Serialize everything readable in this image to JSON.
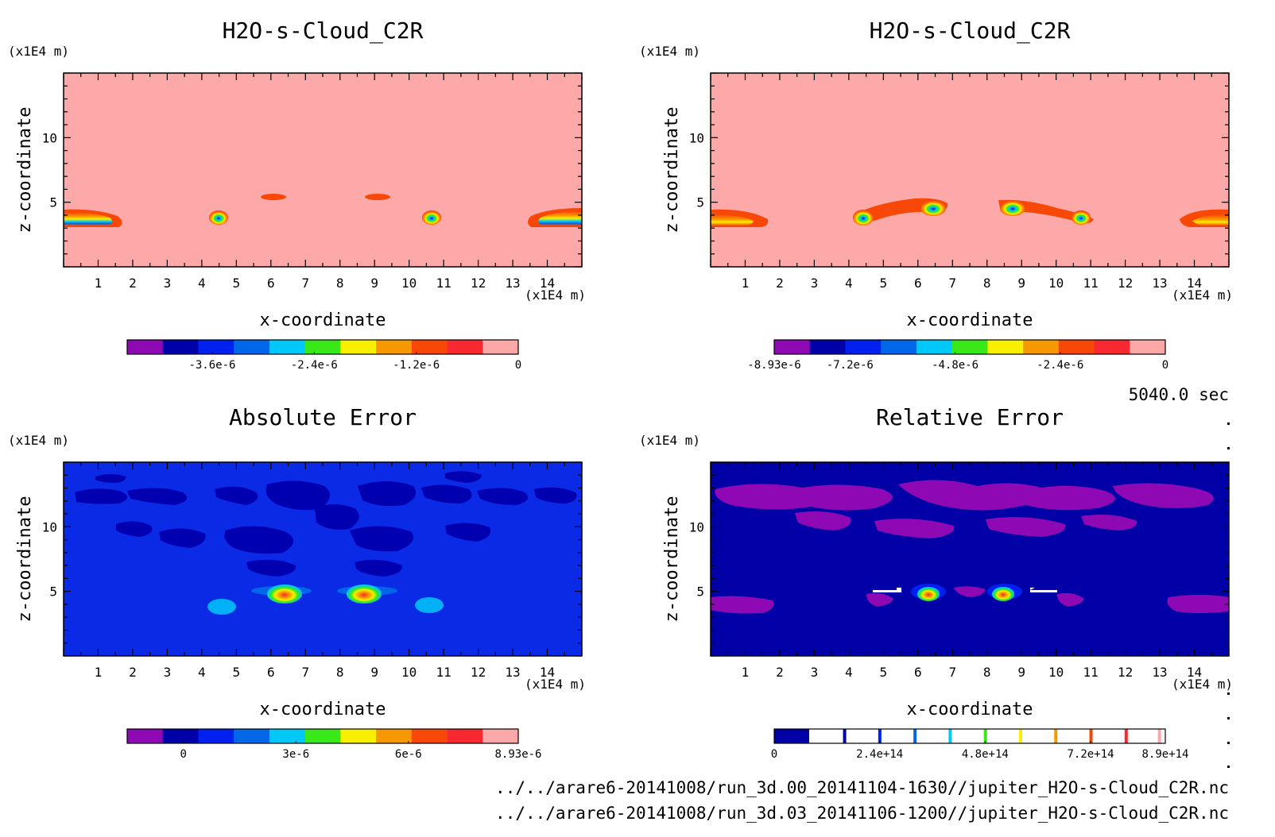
{
  "colors": {
    "palette_neg": [
      "#8e09b3",
      "#0000a8",
      "#0020f0",
      "#0068e8",
      "#00c8f8",
      "#38e818",
      "#f8f000",
      "#f89800",
      "#f84808",
      "#f82830",
      "#fca8a8"
    ],
    "abs_bg": "#0a2ae6",
    "rel_bg": "#0000a6",
    "pink_bg": "#fda9a9",
    "purple": "#8e09b3"
  },
  "chart_data": [
    {
      "type": "heatmap",
      "title": "H2O-s-Cloud_C2R",
      "xlabel": "x-coordinate",
      "ylabel": "z-coordinate",
      "x_unit": "(x1E4 m)",
      "y_unit": "(x1E4 m)",
      "xlim": [
        0,
        15
      ],
      "ylim": [
        0,
        15
      ],
      "x_ticks": [
        1,
        2,
        3,
        4,
        5,
        6,
        7,
        8,
        9,
        10,
        11,
        12,
        13,
        14
      ],
      "y_ticks": [
        5,
        10
      ],
      "colorbar_ticks": [
        "-3.6e-6",
        "-2.4e-6",
        "-1.2e-6",
        "0"
      ],
      "colorbar_range": [
        -4.6e-06,
        0
      ]
    },
    {
      "type": "heatmap",
      "title": "H2O-s-Cloud_C2R",
      "xlabel": "x-coordinate",
      "ylabel": "z-coordinate",
      "x_unit": "(x1E4 m)",
      "y_unit": "(x1E4 m)",
      "xlim": [
        0,
        15
      ],
      "ylim": [
        0,
        15
      ],
      "x_ticks": [
        1,
        2,
        3,
        4,
        5,
        6,
        7,
        8,
        9,
        10,
        11,
        12,
        13,
        14
      ],
      "y_ticks": [
        5,
        10
      ],
      "colorbar_ticks": [
        "-8.93e-6",
        "-7.2e-6",
        "-4.8e-6",
        "-2.4e-6",
        "0"
      ],
      "colorbar_range": [
        -8.93e-06,
        0
      ]
    },
    {
      "type": "heatmap",
      "title": "Absolute Error",
      "xlabel": "x-coordinate",
      "ylabel": "z-coordinate",
      "x_unit": "(x1E4 m)",
      "y_unit": "(x1E4 m)",
      "xlim": [
        0,
        15
      ],
      "ylim": [
        0,
        15
      ],
      "x_ticks": [
        1,
        2,
        3,
        4,
        5,
        6,
        7,
        8,
        9,
        10,
        11,
        12,
        13,
        14
      ],
      "y_ticks": [
        5,
        10
      ],
      "colorbar_ticks": [
        "0",
        "3e-6",
        "6e-6",
        "8.93e-6"
      ],
      "colorbar_range": [
        -1.5e-06,
        8.93e-06
      ]
    },
    {
      "type": "heatmap",
      "title": "Relative Error",
      "xlabel": "x-coordinate",
      "ylabel": "z-coordinate",
      "x_unit": "(x1E4 m)",
      "y_unit": "(x1E4 m)",
      "xlim": [
        0,
        15
      ],
      "ylim": [
        0,
        15
      ],
      "x_ticks": [
        1,
        2,
        3,
        4,
        5,
        6,
        7,
        8,
        9,
        10,
        11,
        12,
        13,
        14
      ],
      "y_ticks": [
        5,
        10
      ],
      "colorbar_ticks": [
        "0",
        "2.4e+14",
        "4.8e+14",
        "7.2e+14",
        "8.9e+14"
      ],
      "colorbar_range": [
        0,
        890000000000000.0
      ]
    }
  ],
  "time_label": "5040.0 sec",
  "footer": [
    "../../arare6-20141008/run_3d.00_20141104-1630//jupiter_H2O-s-Cloud_C2R.nc",
    "../../arare6-20141008/run_3d.03_20141106-1200//jupiter_H2O-s-Cloud_C2R.nc"
  ]
}
